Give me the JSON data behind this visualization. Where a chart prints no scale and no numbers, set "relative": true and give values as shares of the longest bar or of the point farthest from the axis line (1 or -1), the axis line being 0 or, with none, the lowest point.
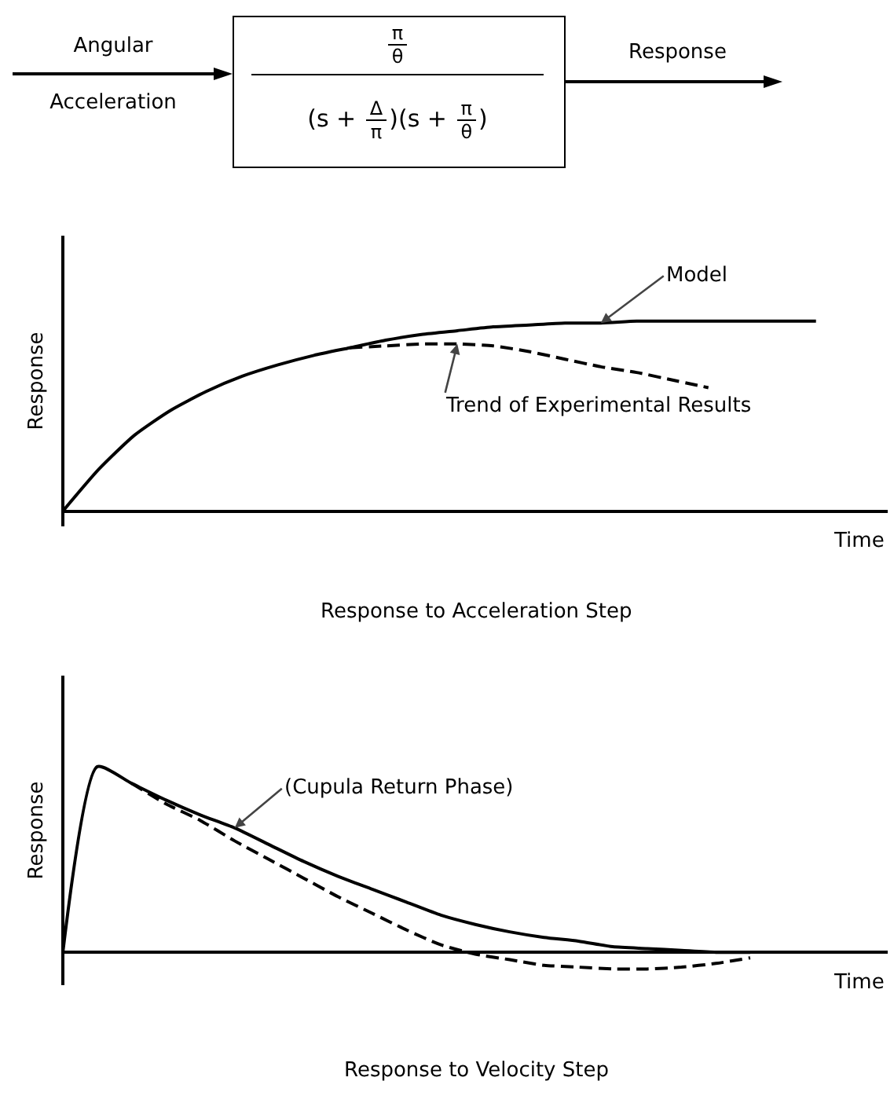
{
  "chart_data": [
    {
      "type": "other",
      "annotations": [
        "Angular",
        "Acceleration",
        "π",
        "θ",
        "(s +",
        "Δ",
        "π",
        ")(s +",
        "π",
        "θ",
        ")",
        "Response"
      ]
    },
    {
      "type": "line",
      "title": "Response to Acceleration Step",
      "xlabel": "Time",
      "ylabel": "Response",
      "relative": true,
      "legend": false,
      "categories": [
        null,
        null,
        null,
        null,
        null,
        null,
        null,
        null,
        null,
        null,
        null,
        null,
        null,
        null,
        null,
        null,
        null,
        null,
        null,
        null,
        null,
        null,
        null,
        null
      ],
      "series": [
        {
          "name": "Model",
          "color": "#000000",
          "line_style": "solid",
          "values": [
            0,
            0.22,
            0.4,
            0.53,
            0.63,
            0.71,
            0.77,
            0.82,
            0.86,
            0.9,
            0.93,
            0.95,
            0.97,
            0.98,
            0.99,
            0.99,
            1,
            1,
            1,
            1,
            1,
            1,
            null,
            null
          ]
        },
        {
          "name": "Trend of Experimental Results",
          "color": "#000000",
          "line_style": "dashed",
          "values": [
            null,
            null,
            null,
            null,
            null,
            null,
            null,
            null,
            0.86,
            0.87,
            0.88,
            0.88,
            0.87,
            0.84,
            0.8,
            0.76,
            0.73,
            0.69,
            0.65,
            null,
            null,
            null,
            null,
            null
          ]
        }
      ]
    },
    {
      "type": "line",
      "title": "Response to Velocity Step",
      "xlabel": "Time",
      "ylabel": "Response",
      "relative": true,
      "legend": false,
      "annotations": [
        "(Cupula Return Phase)"
      ],
      "categories": [
        null,
        null,
        null,
        null,
        null,
        null,
        null,
        null,
        null,
        null,
        null,
        null,
        null,
        null,
        null,
        null,
        null,
        null,
        null,
        null,
        null,
        null,
        null,
        null,
        null
      ],
      "series": [
        {
          "color": "#000000",
          "line_style": "solid",
          "values": [
            0,
            1,
            0.91,
            0.82,
            0.74,
            0.67,
            0.58,
            0.49,
            0.41,
            0.34,
            0.27,
            0.2,
            0.15,
            0.11,
            0.08,
            0.06,
            0.03,
            0.02,
            0.01,
            0,
            0,
            null,
            null,
            null,
            null
          ]
        },
        {
          "color": "#000000",
          "line_style": "dashed",
          "values": [
            null,
            null,
            0.91,
            0.8,
            0.71,
            0.6,
            0.5,
            0.4,
            0.3,
            0.21,
            0.12,
            0.04,
            -0.01,
            -0.04,
            -0.07,
            -0.08,
            -0.09,
            -0.09,
            -0.08,
            -0.06,
            -0.03,
            null,
            null,
            null,
            null
          ]
        }
      ]
    }
  ]
}
